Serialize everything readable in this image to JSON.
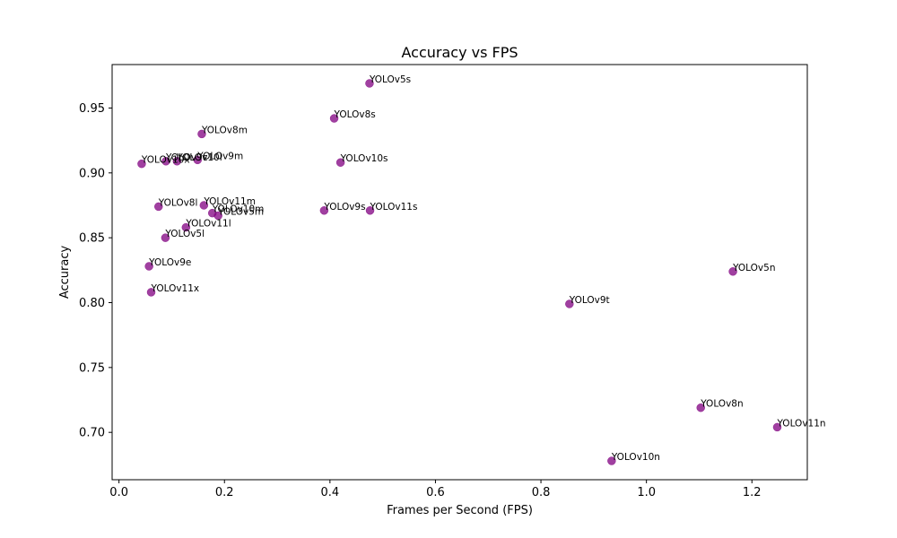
{
  "chart_data": {
    "type": "scatter",
    "title": "Accuracy vs FPS",
    "xlabel": "Frames per Second (FPS)",
    "ylabel": "Accuracy",
    "xlim": [
      -0.013,
      1.305
    ],
    "ylim": [
      0.6635,
      0.9835
    ],
    "xticks": [
      0.0,
      0.2,
      0.4,
      0.6,
      0.8,
      1.0,
      1.2
    ],
    "xtick_labels": [
      "0.0",
      "0.2",
      "0.4",
      "0.6",
      "0.8",
      "1.0",
      "1.2"
    ],
    "yticks": [
      0.7,
      0.75,
      0.8,
      0.85,
      0.9,
      0.95
    ],
    "ytick_labels": [
      "0.70",
      "0.75",
      "0.80",
      "0.85",
      "0.90",
      "0.95"
    ],
    "grid": false,
    "marker_color": "#800080",
    "points": [
      {
        "label": "YOLOv5s",
        "x": 0.475,
        "y": 0.969
      },
      {
        "label": "YOLOv8s",
        "x": 0.408,
        "y": 0.942
      },
      {
        "label": "YOLOv8m",
        "x": 0.157,
        "y": 0.93
      },
      {
        "label": "YOLOv10s",
        "x": 0.42,
        "y": 0.908
      },
      {
        "label": "YOLOv9m",
        "x": 0.149,
        "y": 0.91
      },
      {
        "label": "YOLOv10l",
        "x": 0.11,
        "y": 0.909
      },
      {
        "label": "YOLOv9c",
        "x": 0.089,
        "y": 0.909
      },
      {
        "label": "YOLOv10x",
        "x": 0.043,
        "y": 0.907
      },
      {
        "label": "YOLOv8l",
        "x": 0.075,
        "y": 0.874
      },
      {
        "label": "YOLOv11m",
        "x": 0.161,
        "y": 0.875
      },
      {
        "label": "YOLOv10m",
        "x": 0.177,
        "y": 0.869
      },
      {
        "label": "YOLOv5m",
        "x": 0.188,
        "y": 0.867
      },
      {
        "label": "YOLOv9s",
        "x": 0.389,
        "y": 0.871
      },
      {
        "label": "YOLOv11s",
        "x": 0.476,
        "y": 0.871
      },
      {
        "label": "YOLOv11l",
        "x": 0.127,
        "y": 0.858
      },
      {
        "label": "YOLOv5l",
        "x": 0.088,
        "y": 0.85
      },
      {
        "label": "YOLOv9e",
        "x": 0.057,
        "y": 0.828
      },
      {
        "label": "YOLOv11x",
        "x": 0.061,
        "y": 0.808
      },
      {
        "label": "YOLOv5n",
        "x": 1.164,
        "y": 0.824
      },
      {
        "label": "YOLOv9t",
        "x": 0.854,
        "y": 0.799
      },
      {
        "label": "YOLOv8n",
        "x": 1.103,
        "y": 0.719
      },
      {
        "label": "YOLOv11n",
        "x": 1.248,
        "y": 0.704
      },
      {
        "label": "YOLOv10n",
        "x": 0.934,
        "y": 0.678
      }
    ]
  }
}
